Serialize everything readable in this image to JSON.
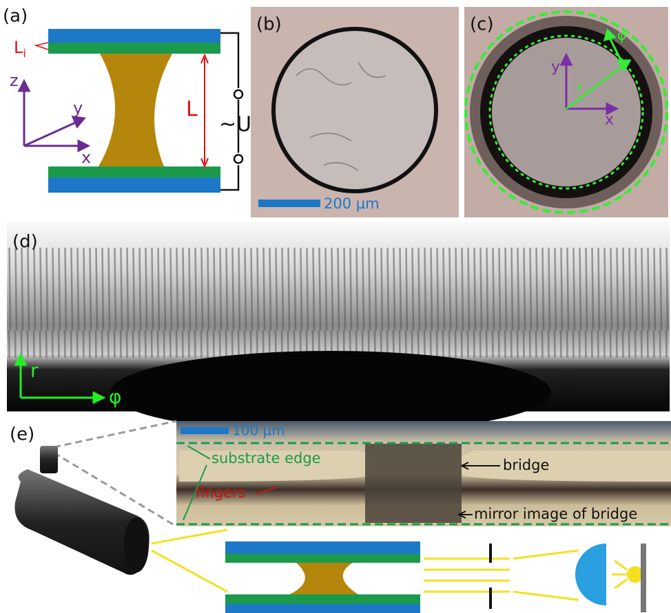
{
  "panels": {
    "a": {
      "label": "(a)",
      "layer_symbol": "L",
      "layer_subscript": "i",
      "axis_z": "z",
      "axis_y": "y",
      "axis_x": "x",
      "gap": "L",
      "voltage": "~U"
    },
    "b": {
      "label": "(b)",
      "scale_bar": "200 µm"
    },
    "c": {
      "label": "(c)",
      "axis_y": "y",
      "axis_x": "x",
      "radius": "r",
      "angle": "φ"
    },
    "d": {
      "label": "(d)",
      "axis_r": "r",
      "axis_phi": "φ"
    },
    "e": {
      "label": "(e)",
      "scale_bar": "100 µm",
      "substrate_edge": "substrate edge",
      "fingers": "fingers",
      "bridge": "bridge",
      "mirror": "mirror image of bridge"
    }
  }
}
